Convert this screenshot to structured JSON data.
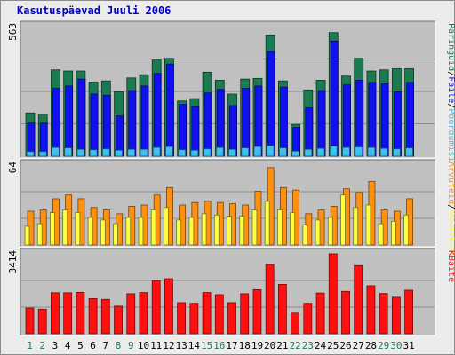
{
  "title": "Kasutuspäevad Juuli 2006",
  "colors": {
    "pageviews": "#1a7a50",
    "files": "#1010f0",
    "hits": "#40c0f0",
    "visits": "#ff9010",
    "sites": "#ffff40",
    "kbytes": "#ff1010",
    "weekend_label": "#207a50",
    "weekday_label": "#000000",
    "panel_bg": "#c0c0c0"
  },
  "chart_data": [
    {
      "type": "bar",
      "name": "top-panel",
      "categories": [
        "1",
        "2",
        "3",
        "4",
        "5",
        "6",
        "7",
        "8",
        "9",
        "10",
        "11",
        "12",
        "13",
        "14",
        "15",
        "16",
        "17",
        "18",
        "19",
        "20",
        "21",
        "22",
        "23",
        "24",
        "25",
        "26",
        "27",
        "28",
        "29",
        "30",
        "31"
      ],
      "weekend_days": [
        1,
        2,
        8,
        9,
        15,
        16,
        22,
        23,
        29,
        30
      ],
      "ymax": 563,
      "tick_label": "563",
      "axis_label_parts": [
        "Päringuid",
        "/",
        "Faile",
        "/",
        "Pöördumisi"
      ],
      "series": [
        {
          "name": "Päringuid",
          "color": "#1a7a50",
          "values": [
            188,
            182,
            375,
            370,
            370,
            322,
            327,
            280,
            340,
            354,
            418,
            425,
            240,
            250,
            365,
            330,
            270,
            335,
            338,
            527,
            327,
            137,
            288,
            330,
            537,
            348,
            425,
            370,
            375,
            380,
            380
          ]
        },
        {
          "name": "Faile",
          "color": "#1010f0",
          "values": [
            144,
            144,
            295,
            305,
            335,
            270,
            265,
            175,
            285,
            305,
            360,
            400,
            225,
            215,
            275,
            290,
            220,
            295,
            305,
            455,
            300,
            125,
            210,
            285,
            500,
            310,
            330,
            320,
            315,
            280,
            320
          ]
        },
        {
          "name": "Pöördumisi",
          "color": "#40c0f0",
          "values": [
            20,
            20,
            38,
            36,
            30,
            28,
            32,
            26,
            30,
            30,
            38,
            42,
            28,
            26,
            32,
            38,
            30,
            36,
            42,
            46,
            36,
            22,
            30,
            34,
            44,
            38,
            40,
            38,
            34,
            32,
            36
          ]
        }
      ]
    },
    {
      "type": "bar",
      "name": "middle-panel",
      "categories": [
        "1",
        "2",
        "3",
        "4",
        "5",
        "6",
        "7",
        "8",
        "9",
        "10",
        "11",
        "12",
        "13",
        "14",
        "15",
        "16",
        "17",
        "18",
        "19",
        "20",
        "21",
        "22",
        "23",
        "24",
        "25",
        "26",
        "27",
        "28",
        "29",
        "30",
        "31"
      ],
      "ymax": 64,
      "tick_label": "64",
      "axis_label_parts": [
        "Arvuteid",
        "/",
        "Külastusi"
      ],
      "series": [
        {
          "name": "Arvuteid",
          "color": "#ff9010",
          "values": [
            27,
            28,
            37,
            40,
            37,
            30,
            28,
            25,
            31,
            32,
            40,
            46,
            32,
            34,
            35,
            34,
            33,
            32,
            43,
            62,
            46,
            44,
            25,
            28,
            31,
            45,
            42,
            51,
            28,
            27,
            37
          ]
        },
        {
          "name": "Külastusi",
          "color": "#ffff40",
          "values": [
            15,
            17,
            26,
            28,
            26,
            22,
            20,
            17,
            22,
            22,
            28,
            30,
            20,
            22,
            25,
            24,
            23,
            23,
            28,
            35,
            28,
            26,
            16,
            20,
            22,
            40,
            30,
            32,
            17,
            19,
            24
          ]
        }
      ]
    },
    {
      "type": "bar",
      "name": "bottom-panel",
      "categories": [
        "1",
        "2",
        "3",
        "4",
        "5",
        "6",
        "7",
        "8",
        "9",
        "10",
        "11",
        "12",
        "13",
        "14",
        "15",
        "16",
        "17",
        "18",
        "19",
        "20",
        "21",
        "22",
        "23",
        "24",
        "25",
        "26",
        "27",
        "28",
        "29",
        "30",
        "31"
      ],
      "ymax": 3414,
      "tick_label": "3414",
      "axis_label_parts": [
        "KBaite"
      ],
      "series": [
        {
          "name": "KBaite",
          "color": "#ff1010",
          "values": [
            1100,
            1050,
            1750,
            1750,
            1770,
            1500,
            1470,
            1180,
            1710,
            1760,
            2270,
            2350,
            1330,
            1300,
            1760,
            1670,
            1330,
            1710,
            1880,
            2960,
            2110,
            880,
            1300,
            1740,
            3414,
            1810,
            2910,
            2050,
            1720,
            1560,
            1860
          ]
        }
      ]
    }
  ]
}
